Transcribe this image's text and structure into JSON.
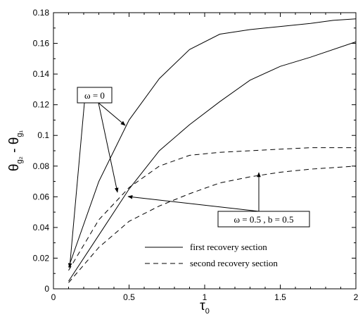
{
  "chart_data": {
    "type": "line",
    "xlabel": "τ₀",
    "ylabel": "θg₂ - θg₁",
    "xlim": [
      0,
      2
    ],
    "ylim": [
      0,
      0.18
    ],
    "x_ticks": [
      "0",
      "0.5",
      "1",
      "1.5",
      "2"
    ],
    "y_ticks": [
      "0",
      "0.02",
      "0.04",
      "0.06",
      "0.08",
      "0.1",
      "0.12",
      "0.14",
      "0.16",
      "0.18"
    ],
    "grid": false,
    "legend_position": "bottom-right",
    "legend": [
      {
        "label": "first recovery section",
        "style": "solid"
      },
      {
        "label": "second recovery section",
        "style": "dashed"
      }
    ],
    "annotations": [
      {
        "text": "ω = 0"
      },
      {
        "text": "ω = 0.5 , b = 0.5"
      }
    ],
    "series": [
      {
        "group": "ω = 0",
        "style": "solid",
        "x": [
          0.1,
          0.3,
          0.5,
          0.7,
          0.9,
          1.1,
          1.3,
          1.5,
          1.7,
          1.85,
          2.0
        ],
        "y": [
          0.014,
          0.07,
          0.11,
          0.137,
          0.156,
          0.166,
          0.169,
          0.171,
          0.173,
          0.175,
          0.176
        ]
      },
      {
        "group": "ω = 0",
        "style": "dashed",
        "x": [
          0.1,
          0.3,
          0.5,
          0.7,
          0.9,
          1.1,
          1.3,
          1.5,
          1.7,
          2.0
        ],
        "y": [
          0.012,
          0.045,
          0.066,
          0.08,
          0.087,
          0.089,
          0.09,
          0.091,
          0.092,
          0.092
        ]
      },
      {
        "group": "ω = 0.5 , b = 0.5",
        "style": "solid",
        "x": [
          0.1,
          0.3,
          0.5,
          0.7,
          0.9,
          1.1,
          1.3,
          1.5,
          1.7,
          2.0
        ],
        "y": [
          0.005,
          0.035,
          0.065,
          0.09,
          0.107,
          0.122,
          0.136,
          0.145,
          0.151,
          0.161
        ]
      },
      {
        "group": "ω = 0.5 , b = 0.5",
        "style": "dashed",
        "x": [
          0.1,
          0.3,
          0.5,
          0.7,
          0.9,
          1.1,
          1.3,
          1.5,
          1.7,
          2.0
        ],
        "y": [
          0.004,
          0.027,
          0.044,
          0.054,
          0.062,
          0.069,
          0.073,
          0.076,
          0.078,
          0.08
        ]
      }
    ]
  }
}
